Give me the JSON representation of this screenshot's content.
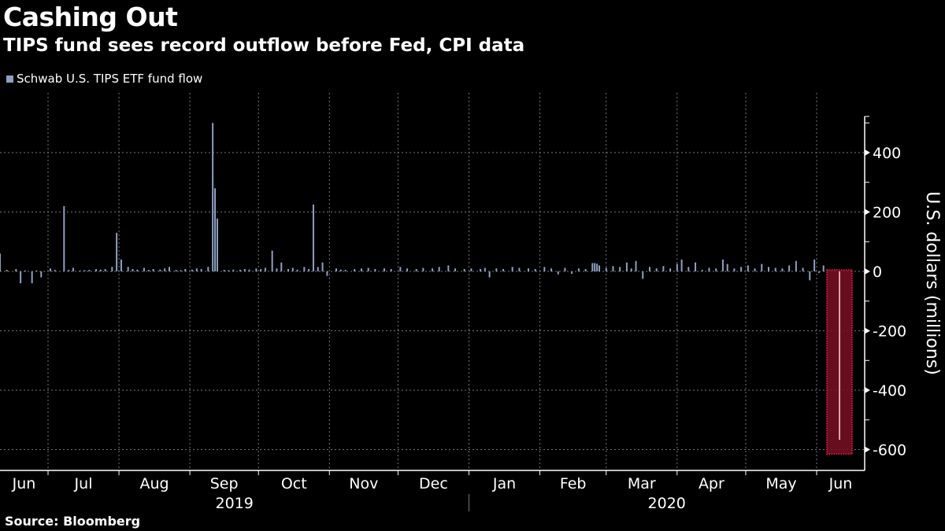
{
  "header": {
    "title": "Cashing Out",
    "subtitle": "TIPS fund sees record outflow before Fed, CPI data"
  },
  "legend": {
    "label": "Schwab U.S. TIPS ETF fund flow",
    "color": "#8e9fc2"
  },
  "footer": {
    "source": "Source: Bloomberg"
  },
  "highlight": {
    "color": "#7a0f22",
    "border": "#d21a3c"
  },
  "chart_data": {
    "type": "bar",
    "title": "Cashing Out",
    "subtitle": "TIPS fund sees record outflow before Fed, CPI data",
    "xlabel": "",
    "ylabel": "U.S. dollars (millions)",
    "ylim": [
      -650,
      520
    ],
    "yticks": [
      400,
      200,
      0,
      -200,
      -400,
      -600
    ],
    "x_range": [
      "2019-06-10",
      "2020-06-22"
    ],
    "grid": true,
    "legend_position": "top-left",
    "month_labels": [
      "Jun",
      "Jul",
      "Aug",
      "Sep",
      "Oct",
      "Nov",
      "Dec",
      "Jan",
      "Feb",
      "Mar",
      "Apr",
      "May",
      "Jun"
    ],
    "year_labels": [
      "2019",
      "2020"
    ],
    "highlight_date": "2020-06-11",
    "series": [
      {
        "name": "Schwab U.S. TIPS ETF fund flow",
        "points": [
          [
            "2019-06-10",
            60
          ],
          [
            "2019-06-13",
            5
          ],
          [
            "2019-06-17",
            8
          ],
          [
            "2019-06-19",
            -40
          ],
          [
            "2019-06-21",
            3
          ],
          [
            "2019-06-24",
            -40
          ],
          [
            "2019-06-26",
            3
          ],
          [
            "2019-06-28",
            -20
          ],
          [
            "2019-07-02",
            10
          ],
          [
            "2019-07-04",
            5
          ],
          [
            "2019-07-08",
            220
          ],
          [
            "2019-07-10",
            5
          ],
          [
            "2019-07-12",
            12
          ],
          [
            "2019-07-15",
            3
          ],
          [
            "2019-07-17",
            4
          ],
          [
            "2019-07-19",
            5
          ],
          [
            "2019-07-22",
            8
          ],
          [
            "2019-07-24",
            6
          ],
          [
            "2019-07-26",
            8
          ],
          [
            "2019-07-29",
            15
          ],
          [
            "2019-07-31",
            130
          ],
          [
            "2019-08-02",
            40
          ],
          [
            "2019-08-05",
            15
          ],
          [
            "2019-08-07",
            8
          ],
          [
            "2019-08-09",
            6
          ],
          [
            "2019-08-12",
            12
          ],
          [
            "2019-08-14",
            5
          ],
          [
            "2019-08-16",
            8
          ],
          [
            "2019-08-19",
            6
          ],
          [
            "2019-08-21",
            10
          ],
          [
            "2019-08-23",
            15
          ],
          [
            "2019-08-26",
            5
          ],
          [
            "2019-08-28",
            4
          ],
          [
            "2019-08-30",
            8
          ],
          [
            "2019-09-02",
            6
          ],
          [
            "2019-09-04",
            10
          ],
          [
            "2019-09-06",
            8
          ],
          [
            "2019-09-09",
            15
          ],
          [
            "2019-09-11",
            500
          ],
          [
            "2019-09-12",
            280
          ],
          [
            "2019-09-13",
            178
          ],
          [
            "2019-09-16",
            5
          ],
          [
            "2019-09-18",
            4
          ],
          [
            "2019-09-20",
            6
          ],
          [
            "2019-09-23",
            5
          ],
          [
            "2019-09-25",
            8
          ],
          [
            "2019-09-27",
            6
          ],
          [
            "2019-09-30",
            10
          ],
          [
            "2019-10-02",
            8
          ],
          [
            "2019-10-04",
            12
          ],
          [
            "2019-10-07",
            70
          ],
          [
            "2019-10-09",
            10
          ],
          [
            "2019-10-11",
            30
          ],
          [
            "2019-10-14",
            8
          ],
          [
            "2019-10-16",
            12
          ],
          [
            "2019-10-18",
            6
          ],
          [
            "2019-10-21",
            15
          ],
          [
            "2019-10-23",
            8
          ],
          [
            "2019-10-25",
            225
          ],
          [
            "2019-10-27",
            15
          ],
          [
            "2019-10-29",
            30
          ],
          [
            "2019-10-31",
            -15
          ],
          [
            "2019-11-04",
            10
          ],
          [
            "2019-11-06",
            6
          ],
          [
            "2019-11-08",
            5
          ],
          [
            "2019-11-12",
            8
          ],
          [
            "2019-11-15",
            10
          ],
          [
            "2019-11-18",
            12
          ],
          [
            "2019-11-21",
            8
          ],
          [
            "2019-11-25",
            10
          ],
          [
            "2019-11-28",
            8
          ],
          [
            "2019-12-02",
            15
          ],
          [
            "2019-12-05",
            10
          ],
          [
            "2019-12-09",
            8
          ],
          [
            "2019-12-12",
            12
          ],
          [
            "2019-12-16",
            10
          ],
          [
            "2019-12-19",
            15
          ],
          [
            "2019-12-23",
            20
          ],
          [
            "2019-12-26",
            10
          ],
          [
            "2019-12-30",
            8
          ],
          [
            "2020-01-02",
            10
          ],
          [
            "2020-01-06",
            8
          ],
          [
            "2020-01-08",
            12
          ],
          [
            "2020-01-10",
            -20
          ],
          [
            "2020-01-13",
            10
          ],
          [
            "2020-01-16",
            8
          ],
          [
            "2020-01-20",
            15
          ],
          [
            "2020-01-23",
            12
          ],
          [
            "2020-01-27",
            10
          ],
          [
            "2020-01-30",
            8
          ],
          [
            "2020-02-03",
            15
          ],
          [
            "2020-02-06",
            10
          ],
          [
            "2020-02-09",
            -10
          ],
          [
            "2020-02-12",
            12
          ],
          [
            "2020-02-15",
            -8
          ],
          [
            "2020-02-18",
            10
          ],
          [
            "2020-02-21",
            8
          ],
          [
            "2020-02-24",
            28
          ],
          [
            "2020-02-25",
            28
          ],
          [
            "2020-02-26",
            26
          ],
          [
            "2020-02-27",
            20
          ],
          [
            "2020-03-01",
            12
          ],
          [
            "2020-03-04",
            18
          ],
          [
            "2020-03-07",
            15
          ],
          [
            "2020-03-10",
            30
          ],
          [
            "2020-03-12",
            10
          ],
          [
            "2020-03-14",
            35
          ],
          [
            "2020-03-17",
            -25
          ],
          [
            "2020-03-20",
            15
          ],
          [
            "2020-03-23",
            10
          ],
          [
            "2020-03-26",
            18
          ],
          [
            "2020-03-29",
            10
          ],
          [
            "2020-04-01",
            25
          ],
          [
            "2020-04-03",
            40
          ],
          [
            "2020-04-06",
            15
          ],
          [
            "2020-04-09",
            30
          ],
          [
            "2020-04-12",
            5
          ],
          [
            "2020-04-15",
            12
          ],
          [
            "2020-04-18",
            10
          ],
          [
            "2020-04-21",
            40
          ],
          [
            "2020-04-23",
            25
          ],
          [
            "2020-04-26",
            10
          ],
          [
            "2020-04-29",
            15
          ],
          [
            "2020-05-02",
            20
          ],
          [
            "2020-05-05",
            10
          ],
          [
            "2020-05-08",
            25
          ],
          [
            "2020-05-11",
            15
          ],
          [
            "2020-05-14",
            12
          ],
          [
            "2020-05-17",
            10
          ],
          [
            "2020-05-20",
            20
          ],
          [
            "2020-05-23",
            35
          ],
          [
            "2020-05-26",
            12
          ],
          [
            "2020-05-29",
            -30
          ],
          [
            "2020-05-31",
            40
          ],
          [
            "2020-06-02",
            -5
          ],
          [
            "2020-06-04",
            20
          ],
          [
            "2020-06-11",
            -567
          ]
        ]
      }
    ]
  }
}
